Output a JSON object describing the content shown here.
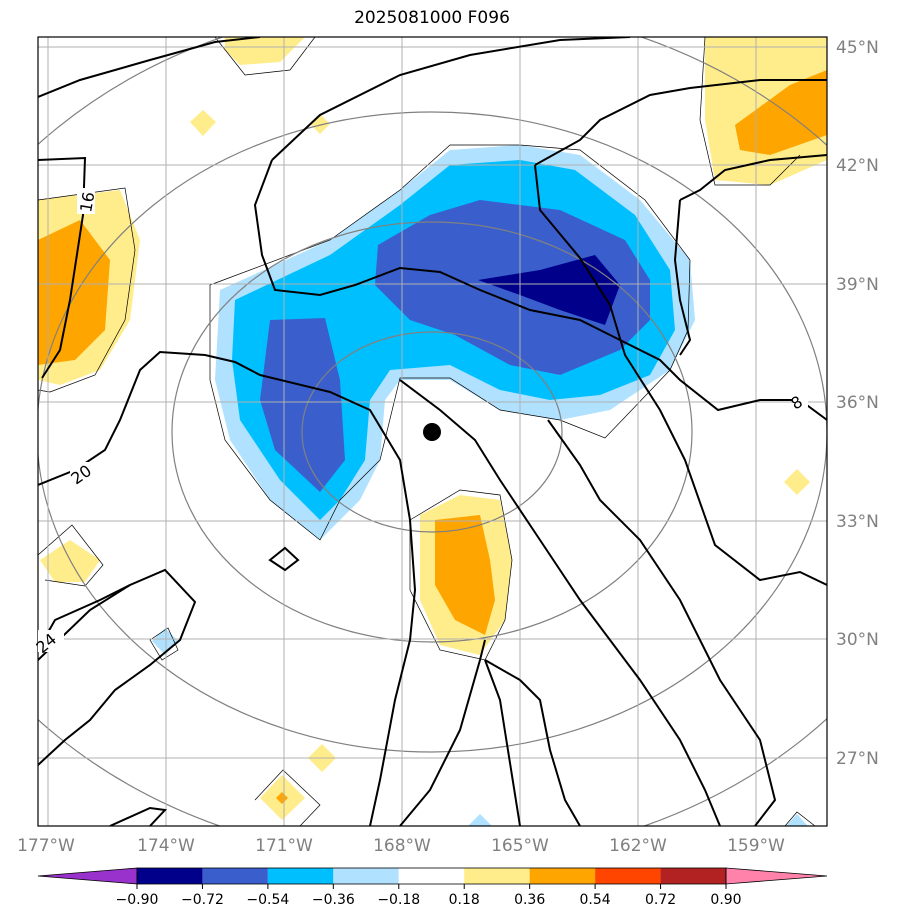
{
  "title": "2025081000 F096",
  "latitudes": [
    "45°N",
    "42°N",
    "39°N",
    "36°N",
    "33°N",
    "30°N",
    "27°N"
  ],
  "longitudes": [
    "177°W",
    "174°W",
    "171°W",
    "168°W",
    "165°W",
    "162°W",
    "159°W"
  ],
  "contour_labels": [
    "16",
    "20",
    "24",
    "8"
  ],
  "colorbar": {
    "ticks": [
      "−0.90",
      "−0.72",
      "−0.54",
      "−0.36",
      "−0.18",
      "0.18",
      "0.36",
      "0.54",
      "0.72",
      "0.90"
    ],
    "colors": [
      "#9932cc",
      "#00008b",
      "#3a5fcd",
      "#00bfff",
      "#b0e2ff",
      "#ffffff",
      "#ffec8b",
      "#ffa500",
      "#ff4500",
      "#b22222",
      "#ff82ab"
    ]
  },
  "colors": {
    "grid": "#b0b0b0",
    "range_ring": "#808080",
    "contour": "#000000",
    "center_marker": "#000000"
  }
}
